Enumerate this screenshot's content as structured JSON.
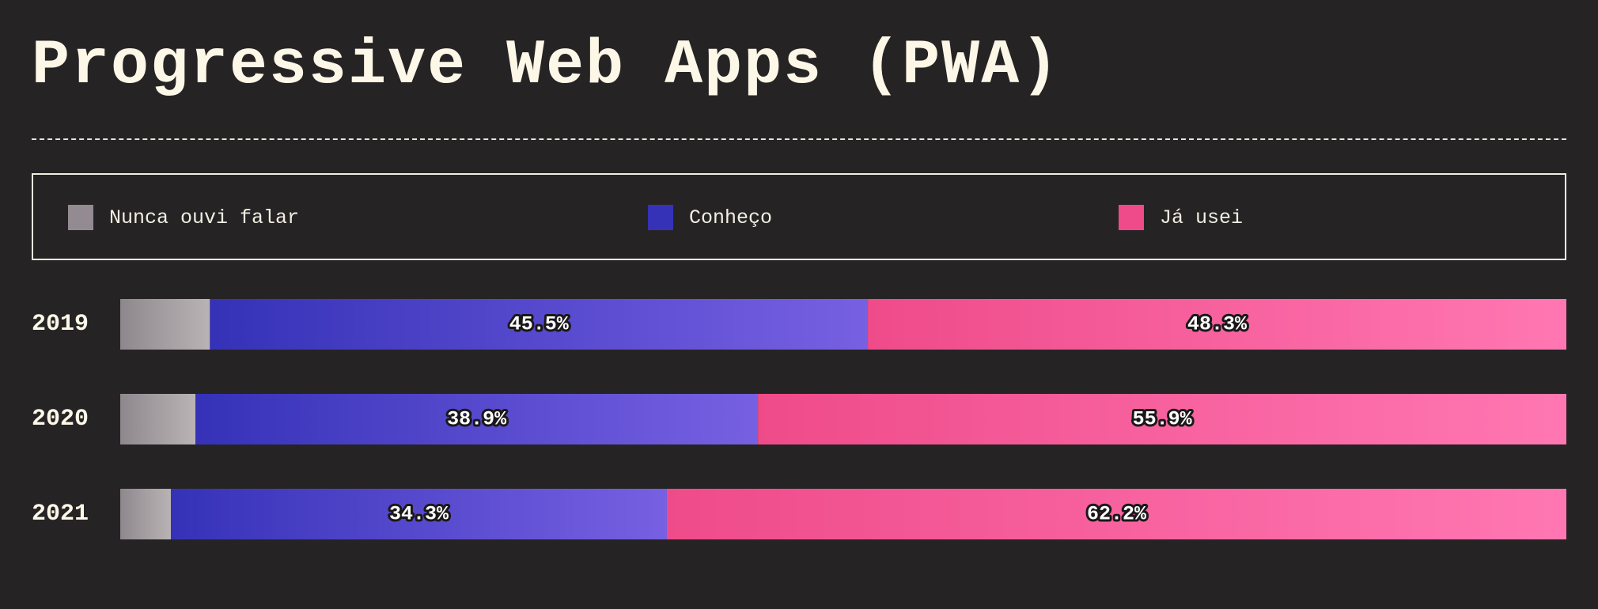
{
  "title": "Progressive Web Apps (PWA)",
  "legend": {
    "items": [
      {
        "label": "Nunca ouvi falar",
        "color": "#938b91"
      },
      {
        "label": "Conheço",
        "color": "#3532b8"
      },
      {
        "label": "Já usei",
        "color": "#ef4b8a"
      }
    ]
  },
  "colors": {
    "background": "#262325",
    "title": "#fdf7e8",
    "never_heard": [
      "#8e888d",
      "#bab3b5"
    ],
    "know": [
      "#3532b8",
      "#7760e2"
    ],
    "used": [
      "#ef4b8a",
      "#ff77b2"
    ]
  },
  "chart_data": {
    "type": "bar",
    "orientation": "horizontal",
    "stacked": true,
    "normalized": true,
    "categories": [
      "2019",
      "2020",
      "2021"
    ],
    "series": [
      {
        "name": "Nunca ouvi falar",
        "values": [
          6.2,
          5.2,
          3.5
        ],
        "labels": [
          "",
          "",
          ""
        ]
      },
      {
        "name": "Conheço",
        "values": [
          45.5,
          38.9,
          34.3
        ],
        "labels": [
          "45.5%",
          "38.9%",
          "34.3%"
        ]
      },
      {
        "name": "Já usei",
        "values": [
          48.3,
          55.9,
          62.2
        ],
        "labels": [
          "48.3%",
          "55.9%",
          "62.2%"
        ]
      }
    ],
    "xlim": [
      0,
      100
    ],
    "legend_position": "top",
    "grid": false
  }
}
